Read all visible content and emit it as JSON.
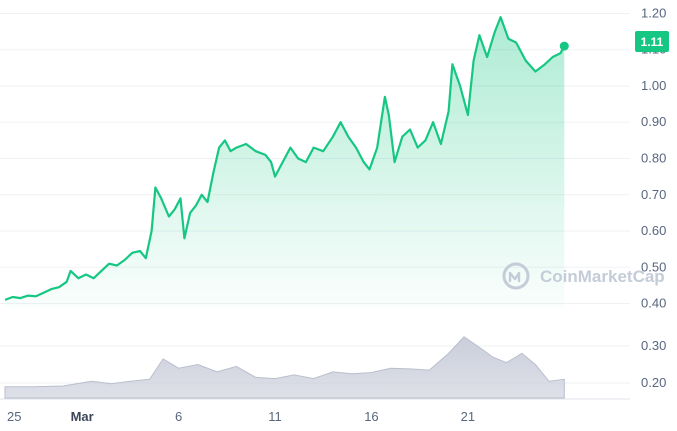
{
  "chart_data": {
    "type": "area",
    "watermark": "CoinMarketCap",
    "colors": {
      "line": "#16c784",
      "volume": "#c8ccd9",
      "badge": "#16c784",
      "grid": "#eff2f5"
    },
    "price_axis": {
      "ylim": [
        0.385,
        1.215
      ],
      "ticks": [
        0.4,
        0.5,
        0.6,
        0.7,
        0.8,
        0.9,
        1.0,
        1.1,
        1.2
      ],
      "tick_labels": [
        "0.40",
        "0.50",
        "0.60",
        "0.70",
        "0.80",
        "0.90",
        "1.00",
        "1.10",
        "1.20"
      ]
    },
    "volume_axis": {
      "ticks": [
        0.2,
        0.3
      ],
      "tick_labels": [
        "0.20",
        "0.30"
      ]
    },
    "x_axis": {
      "range": [
        0,
        32.2
      ],
      "ticks": [
        {
          "x": 0,
          "label": "25",
          "bold": false
        },
        {
          "x": 4,
          "label": "Mar",
          "bold": true
        },
        {
          "x": 9,
          "label": "6",
          "bold": false
        },
        {
          "x": 14,
          "label": "11",
          "bold": false
        },
        {
          "x": 19,
          "label": "16",
          "bold": false
        },
        {
          "x": 24,
          "label": "21",
          "bold": false
        }
      ]
    },
    "current_price": {
      "value": 1.11,
      "label": "1.11"
    },
    "series": [
      {
        "values": [
          [
            0.0,
            0.41
          ],
          [
            0.4,
            0.418
          ],
          [
            0.8,
            0.415
          ],
          [
            1.2,
            0.422
          ],
          [
            1.6,
            0.42
          ],
          [
            2.0,
            0.43
          ],
          [
            2.4,
            0.44
          ],
          [
            2.8,
            0.445
          ],
          [
            3.2,
            0.46
          ],
          [
            3.4,
            0.49
          ],
          [
            3.8,
            0.47
          ],
          [
            4.2,
            0.48
          ],
          [
            4.6,
            0.47
          ],
          [
            5.0,
            0.49
          ],
          [
            5.4,
            0.51
          ],
          [
            5.8,
            0.505
          ],
          [
            6.2,
            0.52
          ],
          [
            6.6,
            0.54
          ],
          [
            7.0,
            0.545
          ],
          [
            7.3,
            0.525
          ],
          [
            7.6,
            0.6
          ],
          [
            7.8,
            0.72
          ],
          [
            8.1,
            0.69
          ],
          [
            8.5,
            0.64
          ],
          [
            8.8,
            0.66
          ],
          [
            9.1,
            0.69
          ],
          [
            9.3,
            0.58
          ],
          [
            9.6,
            0.65
          ],
          [
            9.9,
            0.67
          ],
          [
            10.2,
            0.7
          ],
          [
            10.5,
            0.68
          ],
          [
            10.8,
            0.76
          ],
          [
            11.1,
            0.83
          ],
          [
            11.4,
            0.85
          ],
          [
            11.7,
            0.82
          ],
          [
            12.0,
            0.83
          ],
          [
            12.5,
            0.84
          ],
          [
            13.0,
            0.82
          ],
          [
            13.5,
            0.81
          ],
          [
            13.8,
            0.79
          ],
          [
            14.0,
            0.75
          ],
          [
            14.4,
            0.79
          ],
          [
            14.8,
            0.83
          ],
          [
            15.2,
            0.8
          ],
          [
            15.6,
            0.79
          ],
          [
            16.0,
            0.83
          ],
          [
            16.5,
            0.82
          ],
          [
            17.0,
            0.86
          ],
          [
            17.4,
            0.9
          ],
          [
            17.8,
            0.86
          ],
          [
            18.2,
            0.83
          ],
          [
            18.6,
            0.79
          ],
          [
            18.9,
            0.77
          ],
          [
            19.3,
            0.83
          ],
          [
            19.7,
            0.97
          ],
          [
            19.9,
            0.92
          ],
          [
            20.2,
            0.79
          ],
          [
            20.6,
            0.86
          ],
          [
            21.0,
            0.88
          ],
          [
            21.4,
            0.83
          ],
          [
            21.8,
            0.85
          ],
          [
            22.2,
            0.9
          ],
          [
            22.6,
            0.84
          ],
          [
            23.0,
            0.93
          ],
          [
            23.2,
            1.06
          ],
          [
            23.6,
            1.0
          ],
          [
            24.0,
            0.92
          ],
          [
            24.3,
            1.07
          ],
          [
            24.6,
            1.14
          ],
          [
            25.0,
            1.08
          ],
          [
            25.4,
            1.15
          ],
          [
            25.7,
            1.19
          ],
          [
            26.1,
            1.13
          ],
          [
            26.5,
            1.12
          ],
          [
            27.0,
            1.07
          ],
          [
            27.5,
            1.04
          ],
          [
            28.0,
            1.06
          ],
          [
            28.4,
            1.08
          ],
          [
            28.8,
            1.09
          ],
          [
            29.0,
            1.11
          ]
        ]
      }
    ],
    "volume": [
      [
        0.0,
        0.19
      ],
      [
        1.5,
        0.19
      ],
      [
        3.0,
        0.192
      ],
      [
        4.5,
        0.205
      ],
      [
        5.5,
        0.198
      ],
      [
        6.5,
        0.205
      ],
      [
        7.5,
        0.21
      ],
      [
        8.2,
        0.265
      ],
      [
        9.0,
        0.24
      ],
      [
        10.0,
        0.25
      ],
      [
        11.0,
        0.23
      ],
      [
        12.0,
        0.245
      ],
      [
        13.0,
        0.215
      ],
      [
        14.0,
        0.212
      ],
      [
        15.0,
        0.222
      ],
      [
        16.0,
        0.212
      ],
      [
        17.0,
        0.23
      ],
      [
        18.0,
        0.225
      ],
      [
        19.0,
        0.228
      ],
      [
        20.0,
        0.24
      ],
      [
        21.0,
        0.238
      ],
      [
        22.0,
        0.235
      ],
      [
        23.0,
        0.28
      ],
      [
        23.8,
        0.325
      ],
      [
        24.5,
        0.3
      ],
      [
        25.3,
        0.27
      ],
      [
        26.0,
        0.255
      ],
      [
        26.8,
        0.28
      ],
      [
        27.5,
        0.25
      ],
      [
        28.2,
        0.205
      ],
      [
        29.0,
        0.21
      ]
    ]
  }
}
